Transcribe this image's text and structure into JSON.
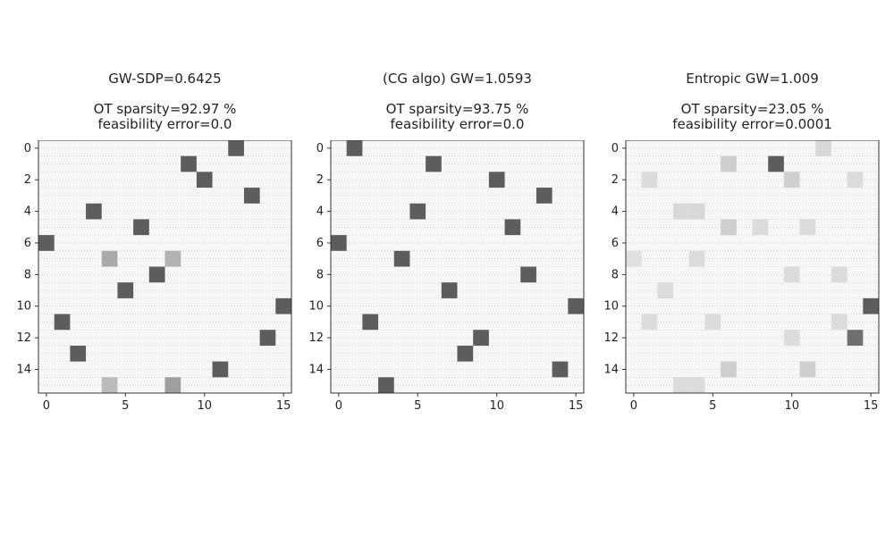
{
  "chart_data": [
    {
      "type": "heatmap",
      "title_lines": [
        "GW-SDP=0.6425",
        "",
        "OT sparsity=92.97 %",
        "feasibility error=0.0"
      ],
      "x_ticks": [
        0,
        5,
        10,
        15
      ],
      "y_ticks": [
        0,
        2,
        4,
        6,
        8,
        10,
        12,
        14
      ],
      "size": 16,
      "cells": [
        {
          "row": 0,
          "col": 12,
          "v": 0.75
        },
        {
          "row": 1,
          "col": 9,
          "v": 0.75
        },
        {
          "row": 2,
          "col": 10,
          "v": 0.75
        },
        {
          "row": 3,
          "col": 13,
          "v": 0.75
        },
        {
          "row": 4,
          "col": 3,
          "v": 0.75
        },
        {
          "row": 5,
          "col": 6,
          "v": 0.75
        },
        {
          "row": 6,
          "col": 0,
          "v": 0.75
        },
        {
          "row": 7,
          "col": 4,
          "v": 0.35
        },
        {
          "row": 7,
          "col": 8,
          "v": 0.3
        },
        {
          "row": 8,
          "col": 7,
          "v": 0.75
        },
        {
          "row": 9,
          "col": 5,
          "v": 0.75
        },
        {
          "row": 10,
          "col": 15,
          "v": 0.75
        },
        {
          "row": 11,
          "col": 1,
          "v": 0.75
        },
        {
          "row": 12,
          "col": 14,
          "v": 0.75
        },
        {
          "row": 13,
          "col": 2,
          "v": 0.75
        },
        {
          "row": 14,
          "col": 11,
          "v": 0.75
        },
        {
          "row": 15,
          "col": 4,
          "v": 0.25
        },
        {
          "row": 15,
          "col": 8,
          "v": 0.4
        }
      ]
    },
    {
      "type": "heatmap",
      "title_lines": [
        "(CG algo) GW=1.0593",
        "",
        "OT sparsity=93.75 %",
        "feasibility error=0.0"
      ],
      "x_ticks": [
        0,
        5,
        10,
        15
      ],
      "y_ticks": [
        0,
        2,
        4,
        6,
        8,
        10,
        12,
        14
      ],
      "size": 16,
      "cells": [
        {
          "row": 0,
          "col": 1,
          "v": 0.75
        },
        {
          "row": 1,
          "col": 6,
          "v": 0.75
        },
        {
          "row": 2,
          "col": 10,
          "v": 0.75
        },
        {
          "row": 3,
          "col": 13,
          "v": 0.75
        },
        {
          "row": 4,
          "col": 5,
          "v": 0.75
        },
        {
          "row": 5,
          "col": 11,
          "v": 0.75
        },
        {
          "row": 6,
          "col": 0,
          "v": 0.75
        },
        {
          "row": 7,
          "col": 4,
          "v": 0.75
        },
        {
          "row": 8,
          "col": 12,
          "v": 0.75
        },
        {
          "row": 9,
          "col": 7,
          "v": 0.75
        },
        {
          "row": 10,
          "col": 15,
          "v": 0.75
        },
        {
          "row": 11,
          "col": 2,
          "v": 0.75
        },
        {
          "row": 12,
          "col": 9,
          "v": 0.75
        },
        {
          "row": 13,
          "col": 8,
          "v": 0.75
        },
        {
          "row": 14,
          "col": 14,
          "v": 0.75
        },
        {
          "row": 15,
          "col": 3,
          "v": 0.75
        }
      ]
    },
    {
      "type": "heatmap",
      "title_lines": [
        "Entropic GW=1.009",
        "",
        "OT sparsity=23.05 %",
        "feasibility error=0.0001"
      ],
      "x_ticks": [
        0,
        5,
        10,
        15
      ],
      "y_ticks": [
        0,
        2,
        4,
        6,
        8,
        10,
        12,
        14
      ],
      "size": 16,
      "cells": [
        {
          "row": 0,
          "col": 12,
          "v": 0.1
        },
        {
          "row": 1,
          "col": 6,
          "v": 0.15
        },
        {
          "row": 1,
          "col": 9,
          "v": 0.75
        },
        {
          "row": 2,
          "col": 10,
          "v": 0.15
        },
        {
          "row": 2,
          "col": 1,
          "v": 0.08
        },
        {
          "row": 2,
          "col": 14,
          "v": 0.08
        },
        {
          "row": 4,
          "col": 3,
          "v": 0.1
        },
        {
          "row": 4,
          "col": 4,
          "v": 0.1
        },
        {
          "row": 5,
          "col": 6,
          "v": 0.15
        },
        {
          "row": 5,
          "col": 8,
          "v": 0.08
        },
        {
          "row": 5,
          "col": 11,
          "v": 0.08
        },
        {
          "row": 7,
          "col": 0,
          "v": 0.06
        },
        {
          "row": 7,
          "col": 4,
          "v": 0.08
        },
        {
          "row": 8,
          "col": 10,
          "v": 0.08
        },
        {
          "row": 8,
          "col": 13,
          "v": 0.08
        },
        {
          "row": 9,
          "col": 2,
          "v": 0.08
        },
        {
          "row": 10,
          "col": 15,
          "v": 0.75
        },
        {
          "row": 11,
          "col": 1,
          "v": 0.08
        },
        {
          "row": 11,
          "col": 5,
          "v": 0.08
        },
        {
          "row": 11,
          "col": 13,
          "v": 0.08
        },
        {
          "row": 12,
          "col": 10,
          "v": 0.08
        },
        {
          "row": 12,
          "col": 14,
          "v": 0.65
        },
        {
          "row": 14,
          "col": 6,
          "v": 0.15
        },
        {
          "row": 14,
          "col": 11,
          "v": 0.15
        },
        {
          "row": 15,
          "col": 3,
          "v": 0.08
        },
        {
          "row": 15,
          "col": 4,
          "v": 0.08
        }
      ]
    }
  ]
}
